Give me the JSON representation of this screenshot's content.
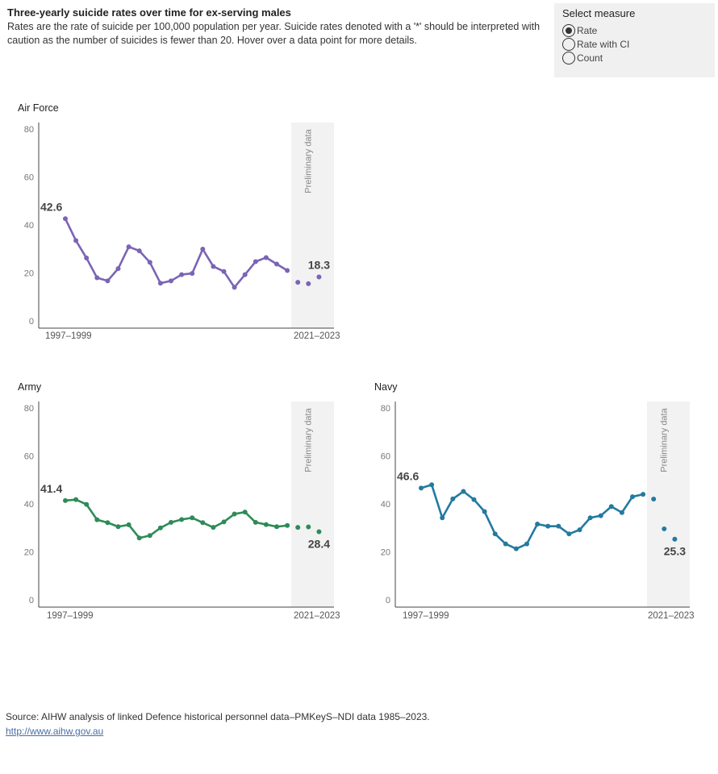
{
  "header": {
    "title": "Three-yearly suicide rates over time for ex-serving males",
    "subtitle": "Rates are the rate of suicide per 100,000 population per year. Suicide rates denoted with a '*' should be interpreted with caution as the number of suicides is fewer than 20. Hover over a data point for more details."
  },
  "measure": {
    "title": "Select measure",
    "options": [
      "Rate",
      "Rate with CI",
      "Count"
    ],
    "selected": "Rate"
  },
  "preliminary_label": "Preliminary data",
  "chart_data": [
    {
      "type": "line",
      "title": "Air Force",
      "color": "#7b64b5",
      "ylim": [
        0,
        80
      ],
      "yticks": [
        0,
        20,
        40,
        60,
        80
      ],
      "x_first_label": "1997–1999",
      "x_last_label": "2021–2023",
      "start_label": "42.6",
      "end_label": "18.3",
      "series_values": [
        42.6,
        33.5,
        26.2,
        18.0,
        16.7,
        21.8,
        30.9,
        29.2,
        24.4,
        15.7,
        16.7,
        19.3,
        19.8,
        29.9,
        22.7,
        20.6,
        14.0,
        19.3,
        24.7,
        26.4,
        23.7,
        21.0
      ],
      "preliminary_values": [
        16.1,
        15.5,
        18.3
      ]
    },
    {
      "type": "line",
      "title": "Army",
      "color": "#2e8b57",
      "ylim": [
        0,
        80
      ],
      "yticks": [
        0,
        20,
        40,
        60,
        80
      ],
      "x_first_label": "1997–1999",
      "x_last_label": "2021–2023",
      "start_label": "41.4",
      "end_label": "28.4",
      "series_values": [
        41.4,
        41.8,
        39.8,
        33.4,
        32.2,
        30.5,
        31.3,
        25.8,
        26.8,
        30.0,
        32.3,
        33.5,
        34.2,
        32.2,
        30.2,
        32.5,
        35.8,
        36.6,
        32.3,
        31.4,
        30.5,
        31.0
      ],
      "preliminary_values": [
        30.2,
        30.4,
        28.4
      ]
    },
    {
      "type": "line",
      "title": "Navy",
      "color": "#237aa0",
      "ylim": [
        0,
        80
      ],
      "yticks": [
        0,
        20,
        40,
        60,
        80
      ],
      "x_first_label": "1997–1999",
      "x_last_label": "2021–2023",
      "start_label": "46.6",
      "end_label": "25.3",
      "series_values": [
        46.6,
        48.0,
        34.2,
        42.1,
        45.2,
        41.8,
        36.8,
        27.5,
        23.3,
        21.3,
        23.3,
        31.6,
        30.7,
        30.7,
        27.5,
        29.2,
        34.2,
        35.1,
        38.9,
        36.4,
        43.0,
        44.0
      ],
      "preliminary_values": [
        42.0,
        29.6,
        25.3
      ]
    }
  ],
  "footer": {
    "source": "Source: AIHW analysis of linked Defence historical personnel data–PMKeyS–NDI data 1985–2023.",
    "link": "http://www.aihw.gov.au"
  }
}
